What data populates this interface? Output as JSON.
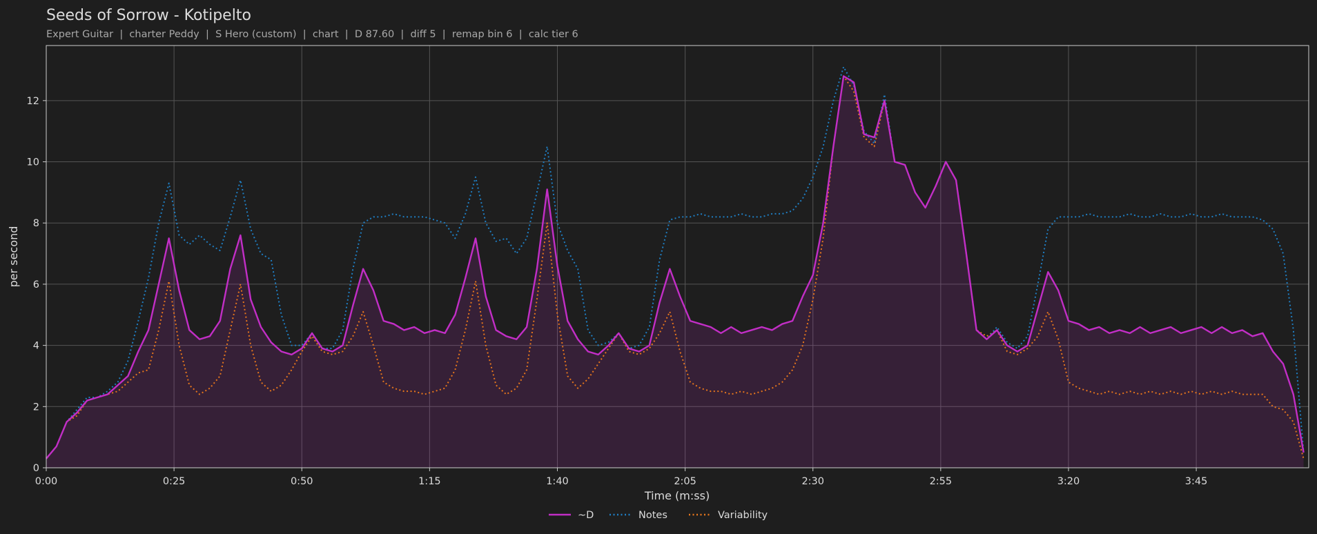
{
  "chart_data": {
    "type": "line",
    "title": "Seeds of Sorrow - Kotipelto",
    "subtitle": "Expert Guitar  |  charter Peddy  |  S Hero (custom)  |  chart  |  D 87.60  |  diff 5  |  remap bin 6  |  calc tier 6",
    "x_label": "Time (m:ss)",
    "y_label": "per second",
    "x": [
      0,
      2,
      4,
      6,
      8,
      10,
      12,
      14,
      16,
      18,
      20,
      22,
      24,
      26,
      28,
      30,
      32,
      34,
      36,
      38,
      40,
      42,
      44,
      46,
      48,
      50,
      52,
      54,
      56,
      58,
      60,
      62,
      64,
      66,
      68,
      70,
      72,
      74,
      76,
      78,
      80,
      82,
      84,
      86,
      88,
      90,
      92,
      94,
      96,
      98,
      100,
      102,
      104,
      106,
      108,
      110,
      112,
      114,
      116,
      118,
      120,
      122,
      124,
      126,
      128,
      130,
      132,
      134,
      136,
      138,
      140,
      142,
      144,
      146,
      148,
      150,
      152,
      154,
      156,
      158,
      160,
      162,
      164,
      166,
      168,
      170,
      172,
      174,
      176,
      178,
      180,
      182,
      184,
      186,
      188,
      190,
      192,
      194,
      196,
      198,
      200,
      202,
      204,
      206,
      208,
      210,
      212,
      214,
      216,
      218,
      220,
      222,
      224,
      226,
      228,
      230,
      232,
      234,
      236,
      238,
      240,
      242,
      244,
      246
    ],
    "series": [
      {
        "name": "~D",
        "color": "#c22ec6",
        "style": "solid",
        "area": true,
        "values": [
          0.3,
          0.7,
          1.5,
          1.8,
          2.2,
          2.3,
          2.4,
          2.7,
          3.0,
          3.8,
          4.5,
          6.0,
          7.5,
          5.8,
          4.5,
          4.2,
          4.3,
          4.8,
          6.5,
          7.6,
          5.5,
          4.6,
          4.1,
          3.8,
          3.7,
          3.9,
          4.4,
          3.9,
          3.8,
          4.0,
          5.3,
          6.5,
          5.8,
          4.8,
          4.7,
          4.5,
          4.6,
          4.4,
          4.5,
          4.4,
          5.0,
          6.2,
          7.5,
          5.6,
          4.5,
          4.3,
          4.2,
          4.6,
          6.5,
          9.1,
          6.6,
          4.8,
          4.2,
          3.8,
          3.7,
          4.0,
          4.4,
          3.9,
          3.8,
          4.0,
          5.4,
          6.5,
          5.6,
          4.8,
          4.7,
          4.6,
          4.4,
          4.6,
          4.4,
          4.5,
          4.6,
          4.5,
          4.7,
          4.8,
          5.6,
          6.3,
          8.0,
          10.5,
          12.8,
          12.6,
          10.9,
          10.8,
          12.0,
          10.0,
          9.9,
          9.0,
          8.5,
          9.2,
          10.0,
          9.4,
          7.0,
          4.5,
          4.2,
          4.5,
          4.0,
          3.8,
          4.0,
          5.2,
          6.4,
          5.8,
          4.8,
          4.7,
          4.5,
          4.6,
          4.4,
          4.5,
          4.4,
          4.6,
          4.4,
          4.5,
          4.6,
          4.4,
          4.5,
          4.6,
          4.4,
          4.6,
          4.4,
          4.5,
          4.3,
          4.4,
          3.8,
          3.4,
          2.4,
          0.5
        ]
      },
      {
        "name": "Notes",
        "color": "#1f7fc4",
        "style": "dotted",
        "values": [
          0.3,
          0.7,
          1.5,
          1.9,
          2.3,
          2.3,
          2.5,
          2.8,
          3.5,
          4.8,
          6.2,
          8.0,
          9.3,
          7.6,
          7.3,
          7.6,
          7.3,
          7.1,
          8.2,
          9.4,
          7.8,
          7.0,
          6.8,
          5.0,
          4.0,
          4.0,
          4.4,
          3.9,
          3.9,
          4.5,
          6.5,
          8.0,
          8.2,
          8.2,
          8.3,
          8.2,
          8.2,
          8.2,
          8.1,
          8.0,
          7.5,
          8.3,
          9.5,
          8.0,
          7.4,
          7.5,
          7.0,
          7.5,
          9.0,
          10.5,
          8.0,
          7.1,
          6.5,
          4.5,
          4.0,
          4.1,
          4.4,
          3.9,
          4.0,
          4.6,
          6.8,
          8.1,
          8.2,
          8.2,
          8.3,
          8.2,
          8.2,
          8.2,
          8.3,
          8.2,
          8.2,
          8.3,
          8.3,
          8.4,
          8.8,
          9.5,
          10.5,
          12.0,
          13.1,
          12.5,
          11.0,
          10.6,
          12.2,
          10.0,
          9.9,
          9.0,
          8.5,
          9.2,
          10.0,
          9.4,
          7.0,
          4.5,
          4.2,
          4.6,
          4.1,
          3.9,
          4.3,
          6.0,
          7.8,
          8.2,
          8.2,
          8.2,
          8.3,
          8.2,
          8.2,
          8.2,
          8.3,
          8.2,
          8.2,
          8.3,
          8.2,
          8.2,
          8.3,
          8.2,
          8.2,
          8.3,
          8.2,
          8.2,
          8.2,
          8.1,
          7.8,
          7.0,
          4.5,
          0.5
        ]
      },
      {
        "name": "Variability",
        "color": "#e8771c",
        "style": "dotted",
        "values": [
          0.3,
          0.7,
          1.5,
          1.7,
          2.2,
          2.3,
          2.4,
          2.5,
          2.8,
          3.1,
          3.2,
          4.5,
          6.1,
          4.0,
          2.7,
          2.4,
          2.6,
          3.0,
          4.5,
          6.0,
          4.0,
          2.8,
          2.5,
          2.7,
          3.2,
          3.8,
          4.3,
          3.8,
          3.7,
          3.8,
          4.3,
          5.1,
          4.0,
          2.8,
          2.6,
          2.5,
          2.5,
          2.4,
          2.5,
          2.6,
          3.2,
          4.5,
          6.1,
          4.0,
          2.7,
          2.4,
          2.6,
          3.2,
          5.5,
          8.0,
          5.0,
          3.0,
          2.6,
          2.9,
          3.4,
          3.9,
          4.4,
          3.8,
          3.7,
          3.9,
          4.4,
          5.1,
          3.8,
          2.8,
          2.6,
          2.5,
          2.5,
          2.4,
          2.5,
          2.4,
          2.5,
          2.6,
          2.8,
          3.2,
          4.0,
          5.5,
          7.5,
          10.5,
          12.8,
          12.3,
          10.8,
          10.5,
          12.0,
          10.0,
          9.9,
          9.0,
          8.5,
          9.2,
          10.0,
          9.4,
          7.0,
          4.5,
          4.3,
          4.5,
          3.8,
          3.7,
          3.9,
          4.3,
          5.1,
          4.2,
          2.8,
          2.6,
          2.5,
          2.4,
          2.5,
          2.4,
          2.5,
          2.4,
          2.5,
          2.4,
          2.5,
          2.4,
          2.5,
          2.4,
          2.5,
          2.4,
          2.5,
          2.4,
          2.4,
          2.4,
          2.0,
          1.9,
          1.5,
          0.3
        ]
      }
    ],
    "xlim": [
      0,
      247
    ],
    "ylim": [
      0,
      13.8
    ],
    "xticks": [
      {
        "value": 0,
        "label": "0:00"
      },
      {
        "value": 25,
        "label": "0:25"
      },
      {
        "value": 50,
        "label": "0:50"
      },
      {
        "value": 75,
        "label": "1:15"
      },
      {
        "value": 100,
        "label": "1:40"
      },
      {
        "value": 125,
        "label": "2:05"
      },
      {
        "value": 150,
        "label": "2:30"
      },
      {
        "value": 175,
        "label": "2:55"
      },
      {
        "value": 200,
        "label": "3:20"
      },
      {
        "value": 225,
        "label": "3:45"
      }
    ],
    "yticks": [
      0,
      2,
      4,
      6,
      8,
      10,
      12
    ],
    "grid": true,
    "legend": "bottom"
  }
}
